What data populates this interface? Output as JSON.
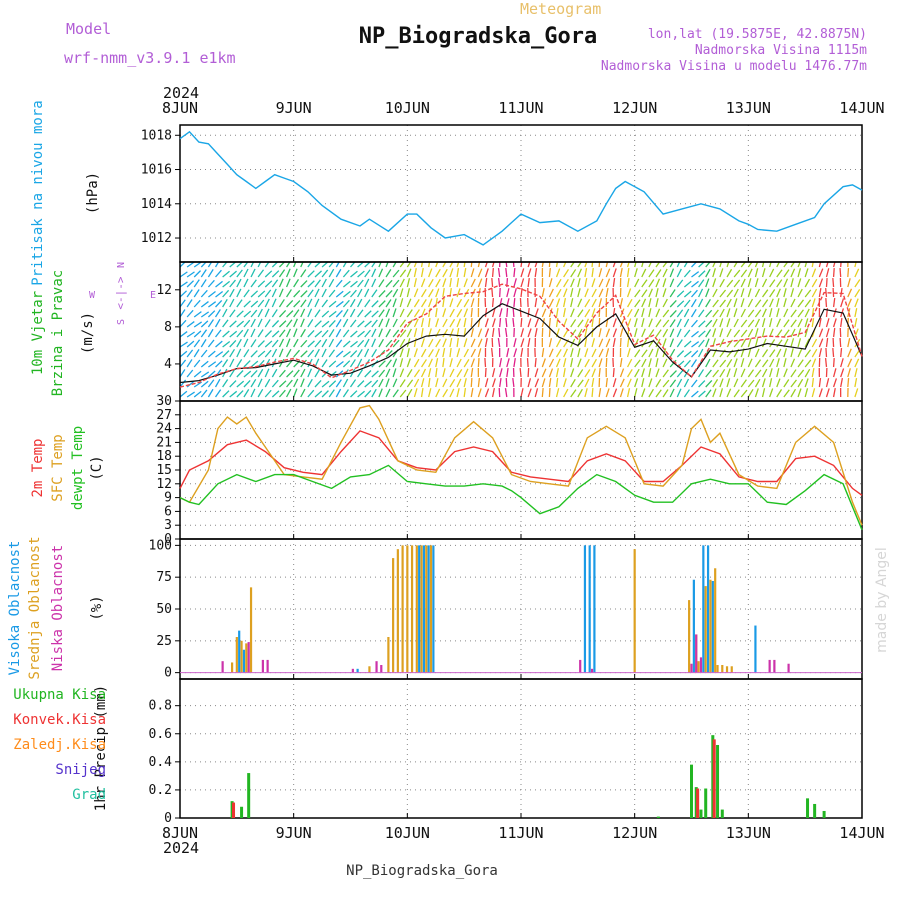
{
  "header": {
    "model_label": "Model",
    "model_name": "wrf-nmm_v3.9.1 e1km",
    "meteogram_label": "Meteogram",
    "station_title": "NP_Biogradska_Gora",
    "lonlat": "lon,lat (19.5875E, 42.8875N)",
    "altitude": "Nadmorska Visina 1115m",
    "model_altitude": "Nadmorska Visina u modelu 1476.77m",
    "footer_station": "NP_Biogradska_Gora",
    "watermark": "made by Angel"
  },
  "colors": {
    "pressure": "#1aa6e6",
    "temp2m": "#ee3333",
    "sfc_temp": "#dda020",
    "dewpt": "#22c022",
    "high_cloud": "#1a9ae6",
    "mid_cloud": "#dda020",
    "low_cloud": "#cc33aa",
    "total_precip": "#22b522",
    "conv_precip": "#ee3333",
    "frozen_precip": "#ff8c1a",
    "snow": "#5533cc",
    "graupel": "#22c0a0",
    "header_purple": "#b25ed6",
    "header_gold": "#e8c06a"
  },
  "chart_data": {
    "type": "line",
    "year": "2024",
    "x_tick_labels": [
      "8JUN",
      "9JUN",
      "10JUN",
      "11JUN",
      "12JUN",
      "13JUN",
      "14JUN"
    ],
    "x_range_hours": [
      0,
      144
    ],
    "panels": [
      {
        "id": "pressure",
        "ylabel": [
          "Pritisak na nivou mora",
          "(hPa)"
        ],
        "yticks": [
          1012,
          1014,
          1016,
          1018
        ],
        "ylim": [
          1010.6,
          1018.6
        ],
        "series": [
          {
            "name": "Pritisak na nivou mora",
            "hours": [
              0,
              2,
              4,
              6,
              8,
              10,
              12,
              14,
              16,
              18,
              20,
              22,
              24,
              27,
              30,
              34,
              38,
              40,
              44,
              48,
              50,
              53,
              56,
              60,
              64,
              68,
              70,
              72,
              76,
              80,
              84,
              88,
              90,
              92,
              94,
              98,
              102,
              106,
              110,
              114,
              118,
              120,
              122,
              126,
              130,
              134,
              136,
              140,
              142,
              144
            ],
            "values": [
              1017.8,
              1018.2,
              1017.6,
              1017.5,
              1016.9,
              1016.3,
              1015.7,
              1015.3,
              1014.9,
              1015.3,
              1015.7,
              1015.5,
              1015.3,
              1014.7,
              1013.9,
              1013.1,
              1012.7,
              1013.1,
              1012.4,
              1013.4,
              1013.4,
              1012.6,
              1012.0,
              1012.2,
              1011.6,
              1012.4,
              1012.9,
              1013.4,
              1012.9,
              1013.0,
              1012.4,
              1013.0,
              1014.0,
              1014.9,
              1015.3,
              1014.7,
              1013.4,
              1013.7,
              1014.0,
              1013.7,
              1013.0,
              1012.8,
              1012.5,
              1012.4,
              1012.8,
              1013.2,
              1014.0,
              1015.0,
              1015.1,
              1014.8
            ]
          }
        ]
      },
      {
        "id": "wind",
        "ylabel": [
          "10m Vjetar",
          "Brzina i Pravac",
          "(m/s)"
        ],
        "compass": {
          "n": "N",
          "s": "S",
          "w": "W",
          "e": "E",
          "arrows": "<-|->"
        },
        "yticks": [
          4,
          8,
          12
        ],
        "ylim": [
          0,
          15
        ],
        "series": [
          {
            "name": "Brzina",
            "hours": [
              0,
              4,
              8,
              12,
              16,
              20,
              24,
              28,
              32,
              36,
              40,
              44,
              48,
              52,
              56,
              60,
              64,
              68,
              72,
              76,
              80,
              84,
              88,
              92,
              96,
              100,
              104,
              108,
              112,
              116,
              120,
              124,
              128,
              132,
              136,
              140,
              144
            ],
            "values": [
              2.0,
              2.2,
              2.8,
              3.5,
              3.6,
              4.0,
              4.4,
              3.8,
              2.8,
              3.0,
              3.8,
              4.7,
              6.2,
              7.0,
              7.2,
              7.0,
              9.2,
              10.5,
              9.7,
              8.9,
              6.9,
              6.0,
              8.0,
              9.4,
              5.8,
              6.5,
              4.2,
              2.6,
              5.5,
              5.3,
              5.6,
              6.2,
              5.9,
              5.6,
              9.9,
              9.5,
              4.8
            ]
          },
          {
            "name": "Udari",
            "hours": [
              0,
              4,
              8,
              12,
              16,
              20,
              24,
              28,
              32,
              36,
              40,
              44,
              48,
              52,
              56,
              60,
              64,
              68,
              72,
              76,
              80,
              84,
              88,
              92,
              96,
              100,
              104,
              108,
              112,
              116,
              120,
              124,
              128,
              132,
              136,
              140,
              144
            ],
            "values": [
              1.5,
              2.0,
              2.9,
              3.5,
              3.7,
              4.2,
              4.6,
              4.0,
              2.5,
              3.3,
              4.2,
              5.5,
              8.4,
              9.4,
              11.3,
              11.6,
              11.8,
              12.6,
              12.1,
              11.3,
              8.6,
              6.7,
              9.5,
              11.4,
              6.1,
              7.1,
              4.4,
              2.6,
              5.9,
              6.4,
              6.7,
              7.0,
              6.9,
              7.4,
              11.7,
              11.6,
              4.8
            ]
          }
        ]
      },
      {
        "id": "temperature",
        "ylabel": [
          "2m Temp",
          "SFC Temp",
          "dewpt Temp",
          "(C)"
        ],
        "yticks": [
          0,
          3,
          6,
          9,
          12,
          15,
          18,
          21,
          24,
          27,
          30
        ],
        "ylim": [
          0,
          30
        ],
        "series": [
          {
            "name": "2m Temp",
            "hours": [
              0,
              2,
              6,
              10,
              14,
              18,
              22,
              26,
              30,
              34,
              38,
              42,
              46,
              50,
              54,
              58,
              62,
              66,
              70,
              74,
              78,
              82,
              86,
              90,
              94,
              98,
              102,
              106,
              110,
              114,
              118,
              122,
              126,
              130,
              134,
              138,
              142,
              144
            ],
            "values": [
              11,
              15,
              17,
              20.5,
              21.5,
              19,
              15.5,
              14.5,
              14,
              19,
              23.5,
              22,
              17,
              15.5,
              15,
              19,
              20,
              19,
              14.5,
              13.5,
              13,
              12.5,
              17,
              18.5,
              17,
              12.5,
              12.5,
              16,
              20,
              18.5,
              13.5,
              12.5,
              12.5,
              17.5,
              18,
              16,
              11,
              9.5
            ]
          },
          {
            "name": "SFC Temp",
            "hours": [
              0,
              2,
              6,
              8,
              10,
              12,
              14,
              16,
              18,
              22,
              26,
              30,
              34,
              38,
              40,
              42,
              46,
              50,
              54,
              58,
              62,
              66,
              70,
              74,
              78,
              82,
              86,
              90,
              94,
              98,
              102,
              106,
              108,
              110,
              112,
              114,
              118,
              122,
              126,
              130,
              134,
              138,
              142,
              144
            ],
            "values": [
              9,
              8,
              15,
              24,
              26.5,
              25,
              26.5,
              23,
              20,
              14,
              13.5,
              13,
              21,
              28.5,
              29,
              26,
              17,
              15,
              14.5,
              22,
              25.5,
              22,
              14,
              12.5,
              12,
              11.5,
              22,
              24.5,
              22,
              12,
              11.5,
              16,
              24,
              26,
              21,
              23,
              14,
              11.5,
              11,
              21,
              24.5,
              21,
              8,
              3
            ]
          },
          {
            "name": "dewpt Temp",
            "hours": [
              0,
              2,
              4,
              8,
              12,
              16,
              20,
              24,
              28,
              32,
              36,
              40,
              44,
              48,
              52,
              56,
              60,
              64,
              68,
              70,
              72,
              76,
              80,
              84,
              88,
              92,
              96,
              100,
              104,
              108,
              112,
              116,
              120,
              124,
              128,
              132,
              136,
              140,
              142,
              144
            ],
            "values": [
              9,
              8,
              7.5,
              12,
              14,
              12.5,
              14,
              14,
              12.5,
              11,
              13.5,
              14,
              16,
              12.5,
              12,
              11.5,
              11.5,
              12,
              11.5,
              10.5,
              9,
              5.5,
              7,
              11,
              14,
              12.5,
              9.5,
              8,
              8,
              12,
              13,
              12,
              12,
              8,
              7.5,
              10.5,
              14,
              12,
              7,
              2
            ]
          }
        ]
      },
      {
        "id": "clouds",
        "ylabel": [
          "Visoka Oblacnost",
          "Srednja Oblacnost",
          "Niska Oblacnost",
          "(%)"
        ],
        "yticks": [
          0,
          25,
          50,
          75,
          100
        ],
        "ylim": [
          -5,
          105
        ],
        "bar_series": [
          {
            "name": "Visoka Oblacnost",
            "hours": [
              12.5,
              13.5,
              37.5,
              50.5,
              51.5,
              52.5,
              53.5,
              85.5,
              86.5,
              87.5,
              108.5,
              110.5,
              111.5,
              112.5,
              121.5
            ],
            "values": [
              33,
              18,
              3,
              100,
              100,
              100,
              100,
              100,
              100,
              100,
              73,
              100,
              100,
              72,
              37
            ]
          },
          {
            "name": "Srednja Oblacnost",
            "hours": [
              11,
              12,
              13,
              14,
              15,
              40,
              44,
              45,
              46,
              47,
              48,
              49,
              50,
              51,
              52,
              53,
              96,
              107.5,
              109,
              109.5,
              111,
              112,
              113,
              113.5,
              114.5,
              115.5,
              116.5
            ],
            "values": [
              8,
              28,
              25,
              23,
              67,
              5,
              28,
              90,
              97,
              100,
              100,
              100,
              100,
              100,
              100,
              100,
              97,
              57,
              30,
              9,
              68,
              73,
              82,
              6,
              6,
              5,
              5
            ]
          },
          {
            "name": "Niska Oblacnost",
            "hours": [
              9,
              14.5,
              17.5,
              18.5,
              36.5,
              41.5,
              42.5,
              84.5,
              87,
              108,
              109,
              110,
              124.5,
              125.5,
              128.5
            ],
            "values": [
              9,
              24,
              10,
              10,
              3,
              9,
              6,
              10,
              3,
              7,
              30,
              12,
              10,
              10,
              7
            ]
          }
        ]
      },
      {
        "id": "precip",
        "ylabel": [
          "1hr Precip (mm)"
        ],
        "legend": [
          "Ukupna Kisa",
          "Konvek.Kisa",
          "Zaledj.Kisa",
          "Snijeg",
          "Grad"
        ],
        "yticks": [
          0,
          0.2,
          0.4,
          0.6,
          0.8
        ],
        "ylim": [
          0,
          0.99
        ],
        "bar_series": [
          {
            "name": "Ukupna Kisa",
            "hours": [
              11,
              13,
              14.5,
              101,
              108,
              109,
              110,
              111,
              112.5,
              113.5,
              114.5,
              132.5,
              134,
              136
            ],
            "values": [
              0.12,
              0.08,
              0.32,
              0.01,
              0.38,
              0.22,
              0.06,
              0.21,
              0.59,
              0.52,
              0.06,
              0.14,
              0.1,
              0.05
            ]
          },
          {
            "name": "Konvek.Kisa",
            "hours": [
              11.3,
              109.3,
              112.8
            ],
            "values": [
              0.11,
              0.21,
              0.56
            ]
          }
        ]
      }
    ]
  }
}
